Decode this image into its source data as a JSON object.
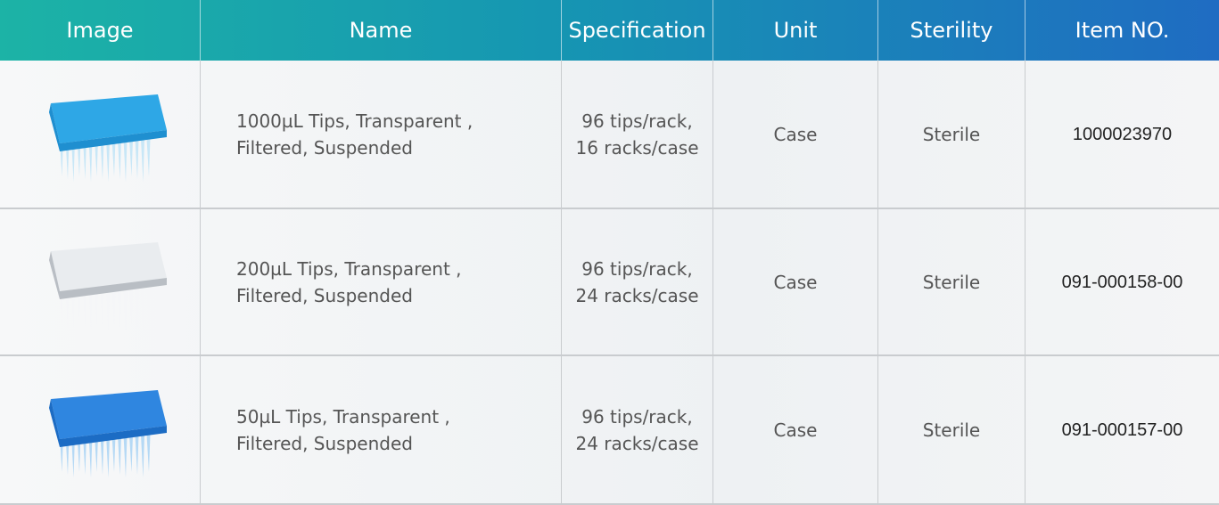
{
  "table": {
    "header": [
      "Image",
      "Name",
      "Specification",
      "Unit",
      "Sterility",
      "Item NO."
    ],
    "rows": [
      {
        "name": [
          "1000µL Tips, Transparent ,",
          "Filtered, Suspended"
        ],
        "specification": [
          "96 tips/rack,",
          "16 racks/case"
        ],
        "unit": "Case",
        "sterility": "Sterile",
        "item_no": "1000023970"
      },
      {
        "name": [
          "200µL Tips, Transparent ,",
          "Filtered, Suspended"
        ],
        "specification": [
          "96 tips/rack,",
          "24 racks/case"
        ],
        "unit": "Case",
        "sterility": "Sterile",
        "item_no": "091-000158-00"
      },
      {
        "name": [
          "50µL Tips, Transparent ,",
          "Filtered, Suspended"
        ],
        "specification": [
          "96 tips/rack,",
          "24 racks/case"
        ],
        "unit": "Case",
        "sterility": "Sterile",
        "item_no": "091-000157-00"
      }
    ]
  }
}
